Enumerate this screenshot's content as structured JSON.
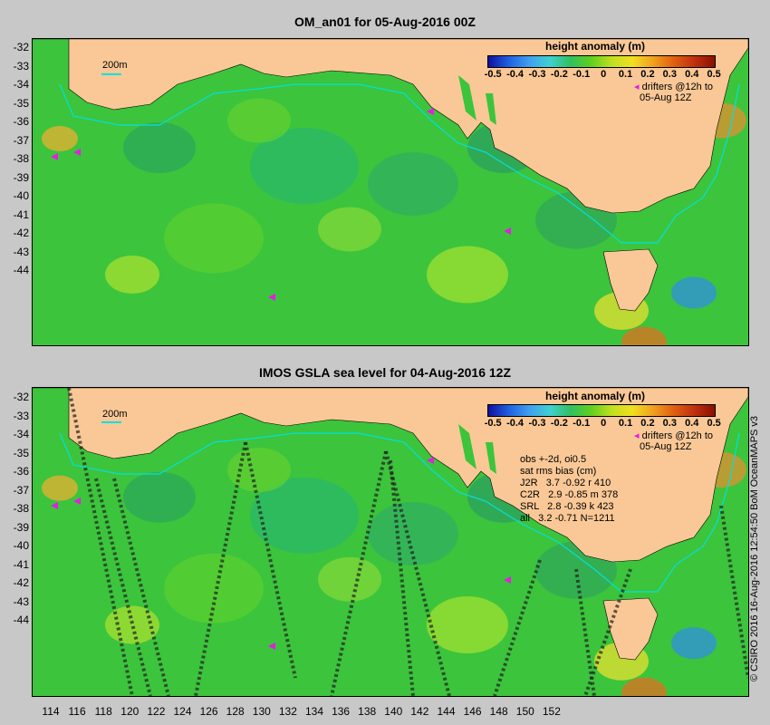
{
  "panels": [
    {
      "title": "OM_an01 for 05-Aug-2016 00Z"
    },
    {
      "title": "IMOS GSLA sea level  for 04-Aug-2016 12Z"
    }
  ],
  "y_ticks": [
    "-32",
    "-33",
    "-34",
    "-35",
    "-36",
    "-37",
    "-38",
    "-39",
    "-40",
    "-41",
    "-42",
    "-43",
    "-44"
  ],
  "x_ticks": [
    "114",
    "116",
    "118",
    "120",
    "122",
    "124",
    "126",
    "128",
    "130",
    "132",
    "134",
    "136",
    "138",
    "140",
    "142",
    "144",
    "146",
    "148",
    "150",
    "152"
  ],
  "legend": {
    "title": "height anomaly (m)",
    "ticks": [
      "-0.5",
      "-0.4",
      "-0.3",
      "-0.2",
      "-0.1",
      "0",
      "0.1",
      "0.2",
      "0.3",
      "0.4",
      "0.5"
    ],
    "drifters_line1": "drifters @12h to",
    "drifters_line2": "05-Aug 12Z"
  },
  "scale_label": "200m",
  "stats": {
    "header1": "obs +-2d, oi0.5",
    "header2": "sat rms bias (cm)",
    "rows": [
      "J2R   3.7 -0.92 r 410",
      "C2R   2.9 -0.85 m 378",
      "SRL   2.8 -0.39 k 423",
      "all   3.2 -0.71 N=1211"
    ]
  },
  "credit": "© CSIRO 2016  16-Aug-2016 12:54:50 BoM OceanMAPS v3",
  "colors": {
    "land": "#fac896",
    "ocean_base": "#3cc43c",
    "background": "#c8c8c8",
    "isobath": "#00e0e0",
    "drifter": "#e020e0"
  }
}
